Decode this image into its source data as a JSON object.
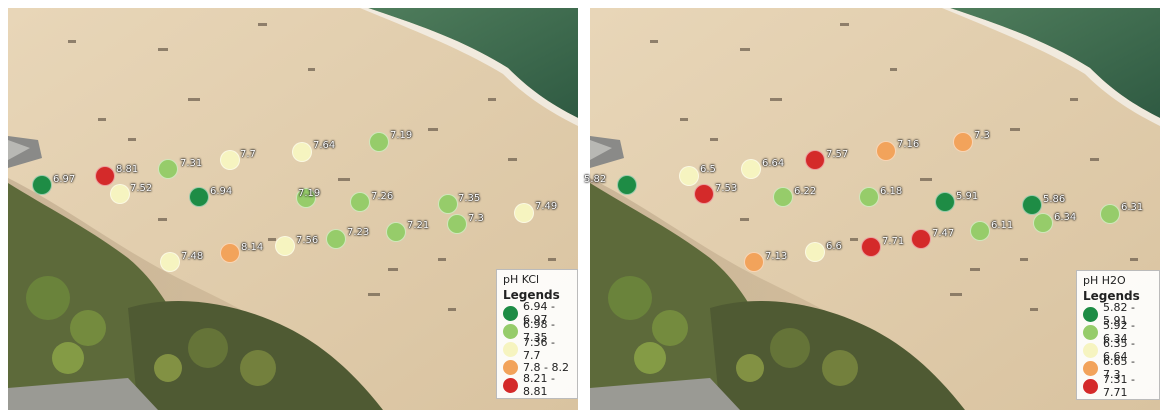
{
  "panels": [
    {
      "name": "ph-kcl",
      "legend_title": "pH KCl",
      "legend_header": "Legends",
      "classes": [
        {
          "label": "6.94 - 6.97",
          "color": "#1e8c45"
        },
        {
          "label": "6.98 - 7.35",
          "color": "#96cc6a"
        },
        {
          "label": "7.36 - 7.7",
          "color": "#f6f4c0"
        },
        {
          "label": "7.8 - 8.2",
          "color": "#f2a35b"
        },
        {
          "label": "8.21 - 8.81",
          "color": "#d42a2a"
        }
      ],
      "points": [
        {
          "label": "6.97",
          "cls": 0
        },
        {
          "label": "8.81",
          "cls": 4
        },
        {
          "label": "7.52",
          "cls": 2
        },
        {
          "label": "7.31",
          "cls": 1
        },
        {
          "label": "7.7",
          "cls": 2
        },
        {
          "label": "6.94",
          "cls": 0
        },
        {
          "label": "7.64",
          "cls": 2
        },
        {
          "label": "7.19",
          "cls": 1
        },
        {
          "label": "7.19",
          "cls": 1
        },
        {
          "label": "7.26",
          "cls": 1
        },
        {
          "label": "7.35",
          "cls": 1
        },
        {
          "label": "7.3",
          "cls": 1
        },
        {
          "label": "7.21",
          "cls": 1
        },
        {
          "label": "7.23",
          "cls": 1
        },
        {
          "label": "7.49",
          "cls": 2
        },
        {
          "label": "7.56",
          "cls": 2
        },
        {
          "label": "8.14",
          "cls": 3
        },
        {
          "label": "7.48",
          "cls": 2
        }
      ]
    },
    {
      "name": "ph-h2o",
      "legend_title": "pH H2O",
      "legend_header": "Legends",
      "classes": [
        {
          "label": "5.82 - 5.91",
          "color": "#1e8c45"
        },
        {
          "label": "5.92 - 6.34",
          "color": "#96cc6a"
        },
        {
          "label": "6.35 - 6.64",
          "color": "#f6f4c0"
        },
        {
          "label": "6.65 - 7.3",
          "color": "#f2a35b"
        },
        {
          "label": "7.31 - 7.71",
          "color": "#d42a2a"
        }
      ],
      "points": [
        {
          "label": "5.82",
          "cls": 0
        },
        {
          "label": "6.5",
          "cls": 2
        },
        {
          "label": "7.53",
          "cls": 4
        },
        {
          "label": "6.64",
          "cls": 2
        },
        {
          "label": "6.22",
          "cls": 1
        },
        {
          "label": "7.57",
          "cls": 4
        },
        {
          "label": "7.16",
          "cls": 3
        },
        {
          "label": "6.18",
          "cls": 1
        },
        {
          "label": "7.3",
          "cls": 3
        },
        {
          "label": "5.91",
          "cls": 0
        },
        {
          "label": "5.86",
          "cls": 0
        },
        {
          "label": "6.34",
          "cls": 1
        },
        {
          "label": "6.11",
          "cls": 1
        },
        {
          "label": "6.31",
          "cls": 1
        },
        {
          "label": "7.47",
          "cls": 4
        },
        {
          "label": "7.71",
          "cls": 4
        },
        {
          "label": "6.6",
          "cls": 2
        },
        {
          "label": "7.13",
          "cls": 3
        }
      ]
    }
  ]
}
